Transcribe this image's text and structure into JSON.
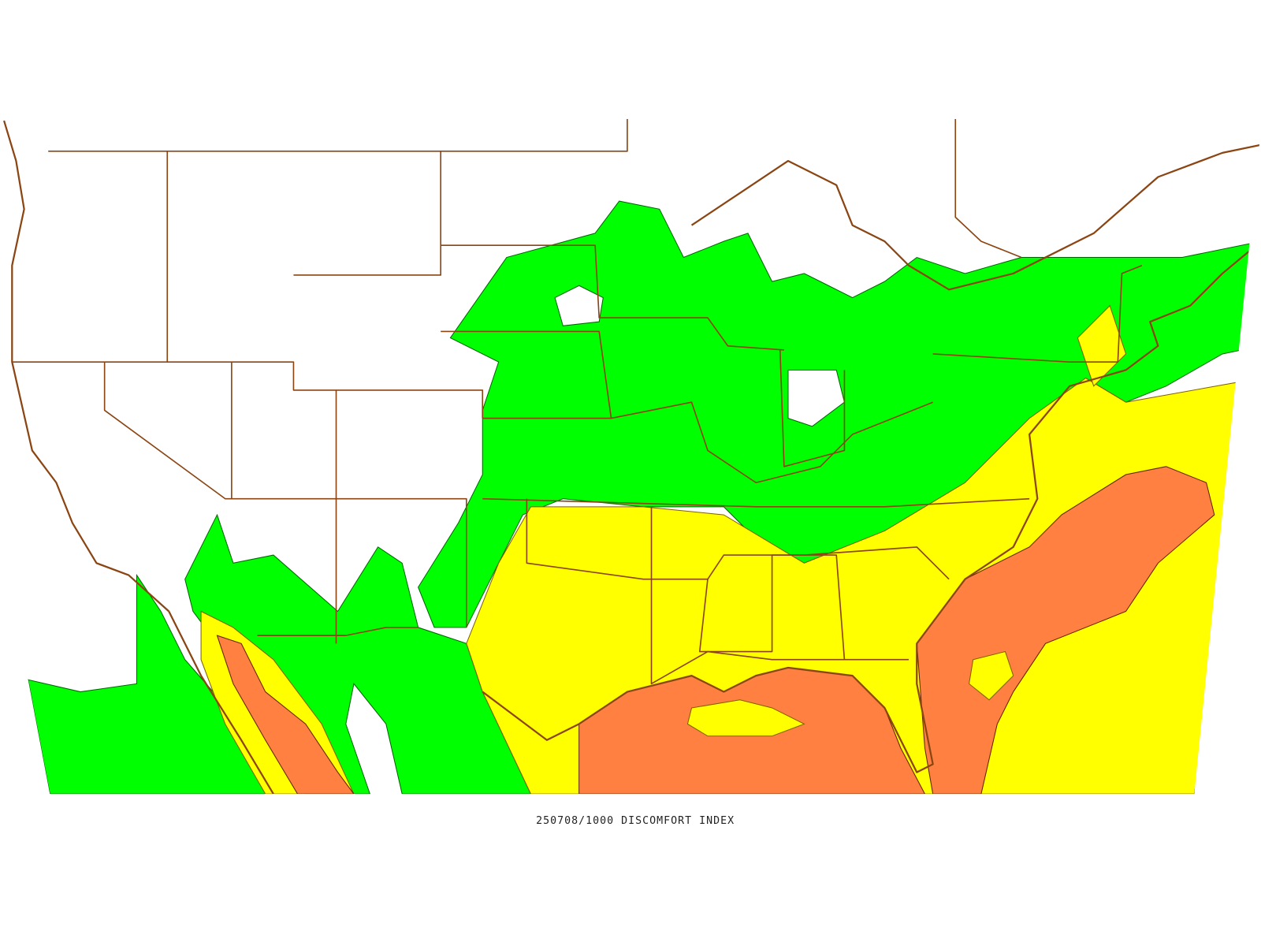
{
  "caption": "250708/1000 DISCOMFORT INDEX"
}
